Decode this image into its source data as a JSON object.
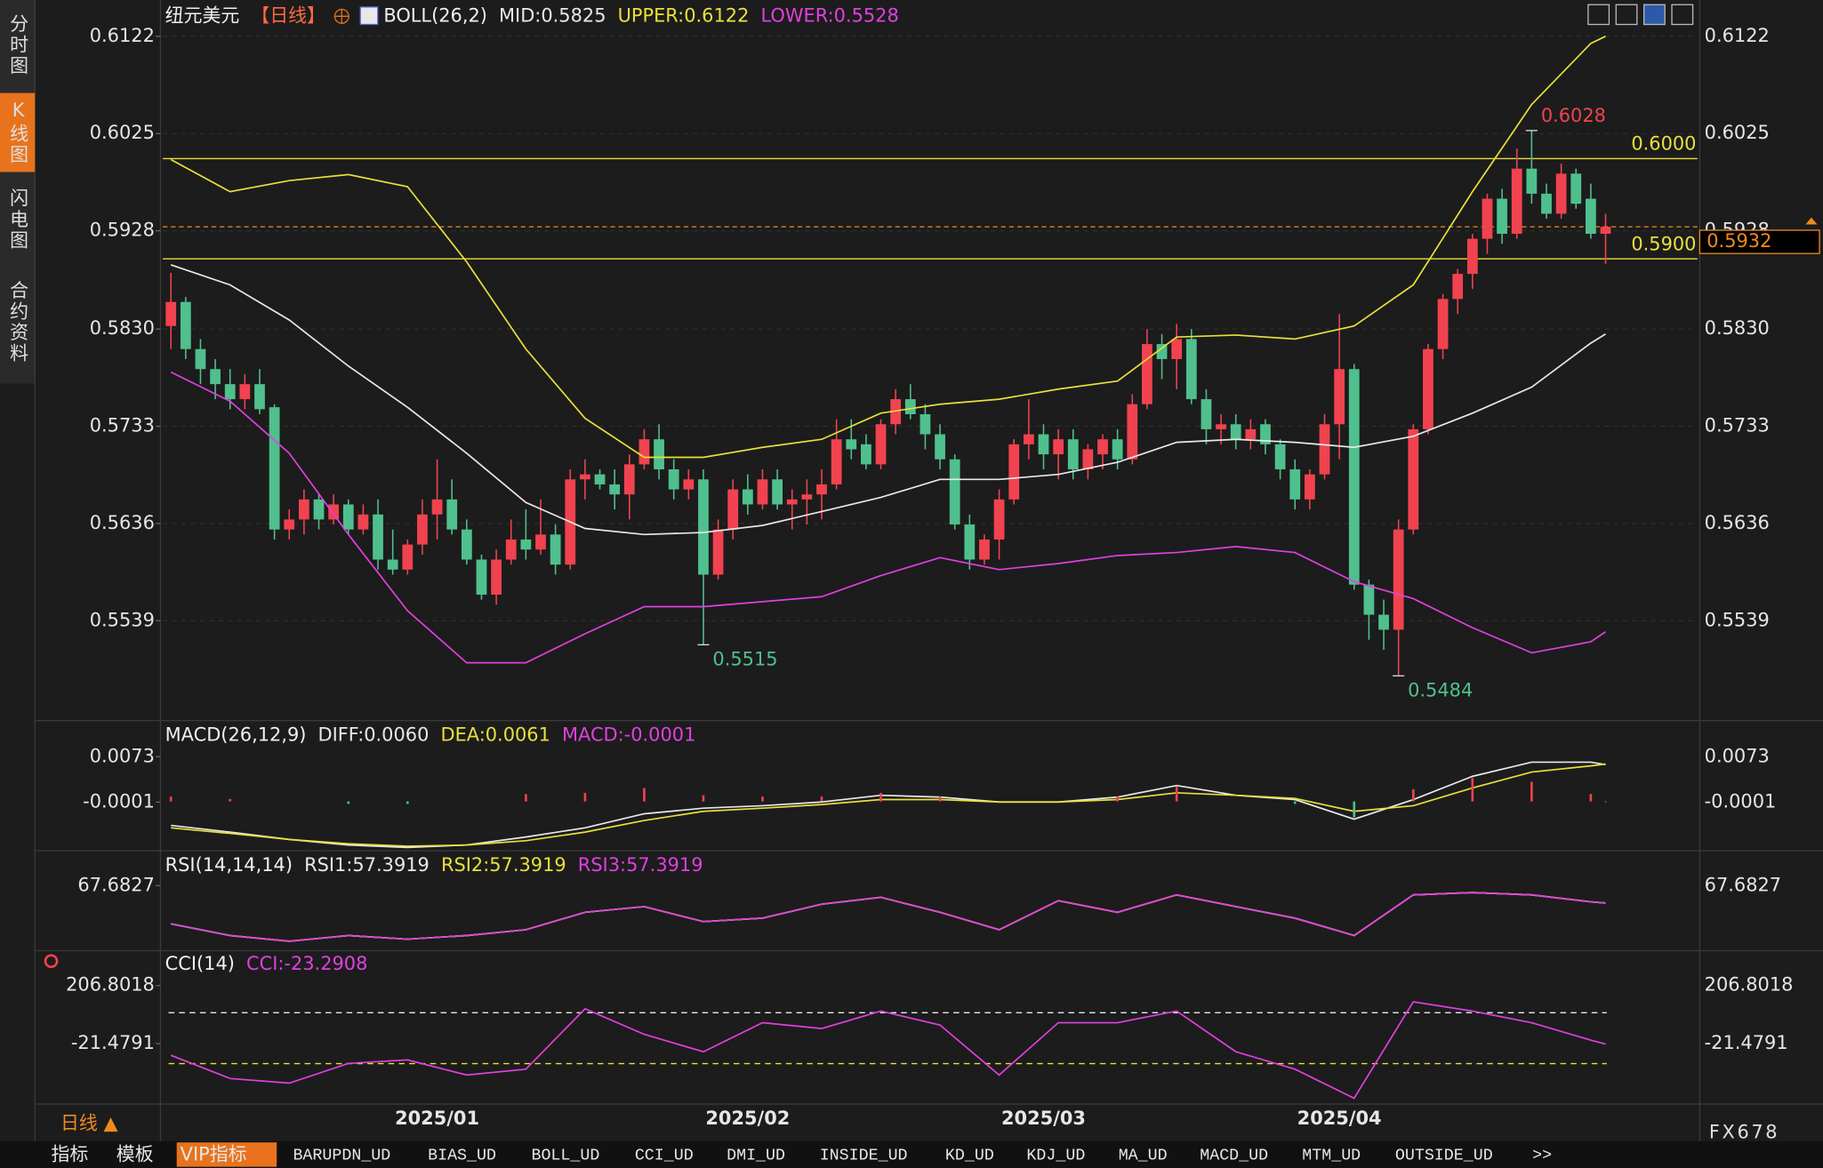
{
  "sidebar": {
    "tabs": [
      "分时图",
      "K线图",
      "闪电图",
      "合约资料"
    ]
  },
  "chart_data": [
    {
      "type": "candlestick",
      "title": "纽元美元",
      "period": "【日线】",
      "indicator": "BOLL(26,2)",
      "categories": [
        null,
        null,
        null,
        null,
        null,
        null,
        null,
        null,
        null,
        null,
        null,
        null,
        null,
        null,
        null,
        null,
        null,
        null,
        "2025/01",
        null,
        null,
        null,
        null,
        null,
        null,
        null,
        null,
        null,
        null,
        null,
        null,
        null,
        null,
        null,
        null,
        null,
        null,
        null,
        null,
        "2025/02",
        null,
        null,
        null,
        null,
        null,
        null,
        null,
        null,
        null,
        null,
        null,
        null,
        null,
        null,
        null,
        null,
        null,
        null,
        null,
        "2025/03",
        null,
        null,
        null,
        null,
        null,
        null,
        null,
        null,
        null,
        null,
        null,
        null,
        null,
        null,
        null,
        null,
        null,
        null,
        null,
        "2025/04",
        null,
        null,
        null,
        null,
        null,
        null,
        null,
        null,
        null,
        null,
        null,
        null,
        null,
        null,
        null,
        null,
        null,
        null
      ],
      "open": [
        0.5833,
        0.5857,
        0.581,
        0.579,
        0.5775,
        0.576,
        0.5775,
        0.5752,
        0.563,
        0.564,
        0.566,
        0.564,
        0.5655,
        0.563,
        0.5645,
        0.56,
        0.559,
        0.5615,
        0.5645,
        0.566,
        0.563,
        0.56,
        0.5565,
        0.56,
        0.562,
        0.561,
        0.5625,
        0.5595,
        0.568,
        0.5685,
        0.5675,
        0.5665,
        0.5695,
        0.572,
        0.569,
        0.567,
        0.568,
        0.5585,
        0.563,
        0.567,
        0.5655,
        0.568,
        0.5655,
        0.566,
        0.5665,
        0.5675,
        0.572,
        0.5715,
        0.5695,
        0.5735,
        0.576,
        0.5745,
        0.5725,
        0.57,
        0.5635,
        0.56,
        0.562,
        0.566,
        0.5715,
        0.5725,
        0.5705,
        0.572,
        0.569,
        0.5705,
        0.572,
        0.57,
        0.5755,
        0.5815,
        0.58,
        0.582,
        0.576,
        0.573,
        0.5735,
        0.572,
        0.5735,
        0.5715,
        0.569,
        0.566,
        0.5685,
        0.5735,
        0.579,
        0.5575,
        0.5545,
        0.553,
        0.563,
        0.573,
        0.581,
        0.586,
        0.5885,
        0.592,
        0.596,
        0.5925,
        0.599,
        0.5965,
        0.5945,
        0.5985,
        0.596,
        0.5925
      ],
      "high": [
        0.5886,
        0.5862,
        0.582,
        0.58,
        0.579,
        0.5785,
        0.579,
        0.5755,
        0.565,
        0.567,
        0.5665,
        0.5665,
        0.566,
        0.5655,
        0.566,
        0.563,
        0.562,
        0.566,
        0.57,
        0.568,
        0.564,
        0.5605,
        0.561,
        0.564,
        0.565,
        0.566,
        0.5635,
        0.569,
        0.57,
        0.569,
        0.569,
        0.5705,
        0.573,
        0.5735,
        0.57,
        0.569,
        0.569,
        0.564,
        0.568,
        0.5685,
        0.569,
        0.569,
        0.567,
        0.568,
        0.569,
        0.574,
        0.574,
        0.5725,
        0.574,
        0.577,
        0.5775,
        0.5755,
        0.5735,
        0.5705,
        0.5645,
        0.5625,
        0.567,
        0.572,
        0.576,
        0.5735,
        0.573,
        0.573,
        0.5715,
        0.5725,
        0.573,
        0.5765,
        0.583,
        0.5825,
        0.5835,
        0.583,
        0.577,
        0.5745,
        0.5745,
        0.574,
        0.574,
        0.572,
        0.57,
        0.569,
        0.5745,
        0.5845,
        0.5795,
        0.558,
        0.556,
        0.564,
        0.5735,
        0.5815,
        0.5865,
        0.589,
        0.5925,
        0.5965,
        0.597,
        0.601,
        0.6028,
        0.5975,
        0.5995,
        0.599,
        0.5975,
        0.5945
      ],
      "low": [
        0.581,
        0.58,
        0.5775,
        0.576,
        0.575,
        0.575,
        0.5745,
        0.562,
        0.562,
        0.5625,
        0.563,
        0.5635,
        0.5625,
        0.5625,
        0.559,
        0.5585,
        0.5585,
        0.5605,
        0.562,
        0.5625,
        0.5595,
        0.556,
        0.5555,
        0.5595,
        0.56,
        0.5605,
        0.5585,
        0.559,
        0.566,
        0.567,
        0.565,
        0.564,
        0.569,
        0.568,
        0.566,
        0.566,
        0.5515,
        0.558,
        0.562,
        0.5645,
        0.565,
        0.565,
        0.563,
        0.5635,
        0.564,
        0.567,
        0.57,
        0.569,
        0.569,
        0.5725,
        0.574,
        0.571,
        0.569,
        0.563,
        0.559,
        0.5595,
        0.56,
        0.5655,
        0.57,
        0.569,
        0.568,
        0.568,
        0.568,
        0.569,
        0.569,
        0.5695,
        0.575,
        0.578,
        0.577,
        0.5755,
        0.5715,
        0.5715,
        0.571,
        0.571,
        0.5705,
        0.568,
        0.565,
        0.565,
        0.568,
        0.57,
        0.557,
        0.552,
        0.551,
        0.5484,
        0.5625,
        0.5725,
        0.58,
        0.5845,
        0.587,
        0.5905,
        0.5915,
        0.592,
        0.5955,
        0.594,
        0.594,
        0.595,
        0.592,
        0.5895
      ],
      "close": [
        0.5857,
        0.581,
        0.579,
        0.5775,
        0.576,
        0.5775,
        0.575,
        0.563,
        0.564,
        0.566,
        0.564,
        0.5655,
        0.563,
        0.5645,
        0.56,
        0.559,
        0.5615,
        0.5645,
        0.566,
        0.563,
        0.56,
        0.5565,
        0.56,
        0.562,
        0.561,
        0.5625,
        0.5595,
        0.568,
        0.5685,
        0.5675,
        0.5665,
        0.5695,
        0.572,
        0.569,
        0.567,
        0.568,
        0.5585,
        0.563,
        0.567,
        0.5655,
        0.568,
        0.5655,
        0.566,
        0.5665,
        0.5675,
        0.572,
        0.571,
        0.5695,
        0.5735,
        0.576,
        0.5745,
        0.5725,
        0.57,
        0.5635,
        0.56,
        0.562,
        0.566,
        0.5715,
        0.5725,
        0.5705,
        0.572,
        0.569,
        0.571,
        0.572,
        0.57,
        0.5755,
        0.5815,
        0.58,
        0.582,
        0.576,
        0.573,
        0.5735,
        0.572,
        0.573,
        0.5715,
        0.569,
        0.566,
        0.5685,
        0.5735,
        0.579,
        0.5575,
        0.5545,
        0.553,
        0.563,
        0.573,
        0.581,
        0.586,
        0.5885,
        0.592,
        0.596,
        0.5925,
        0.599,
        0.5965,
        0.5945,
        0.5985,
        0.5955,
        0.5925,
        0.5932
      ],
      "up_color": "#f0434f",
      "down_color": "#4fc08d",
      "x": [
        0,
        4,
        8,
        12,
        16,
        20,
        24,
        28,
        32,
        36,
        40,
        44,
        48,
        52,
        56,
        60,
        64,
        68,
        72,
        76,
        80,
        84,
        88,
        92,
        96,
        97
      ],
      "series": [
        {
          "name": "MID:0.5825",
          "color": "#e8e8e8",
          "values": [
            0.5894,
            0.5874,
            0.5839,
            0.5793,
            0.5752,
            0.5706,
            0.5657,
            0.5631,
            0.5625,
            0.5627,
            0.5634,
            0.5648,
            0.5662,
            0.568,
            0.568,
            0.5685,
            0.5697,
            0.5717,
            0.572,
            0.5717,
            0.5712,
            0.5723,
            0.5746,
            0.5772,
            0.5816,
            0.5825
          ]
        },
        {
          "name": "UPPER:0.6122",
          "color": "#e8e03a",
          "values": [
            0.5999,
            0.5967,
            0.5978,
            0.5984,
            0.5972,
            0.5897,
            0.581,
            0.5741,
            0.5702,
            0.5702,
            0.5712,
            0.572,
            0.5746,
            0.5755,
            0.576,
            0.577,
            0.5778,
            0.5822,
            0.5824,
            0.582,
            0.5833,
            0.5874,
            0.5967,
            0.6054,
            0.6115,
            0.6122
          ]
        },
        {
          "name": "LOWER:0.5528",
          "color": "#e040e0",
          "values": [
            0.5787,
            0.5758,
            0.5706,
            0.5625,
            0.5549,
            0.5497,
            0.5497,
            0.5526,
            0.5553,
            0.5553,
            0.5558,
            0.5563,
            0.5584,
            0.5602,
            0.559,
            0.5596,
            0.5604,
            0.5607,
            0.5613,
            0.5607,
            0.5578,
            0.5561,
            0.5532,
            0.5507,
            0.5518,
            0.5528
          ]
        }
      ],
      "hlines": [
        {
          "value": 0.6,
          "label": "0.6000"
        },
        {
          "value": 0.59,
          "label": "0.5900"
        }
      ],
      "hline_color": "#e8e03a",
      "annotations": [
        {
          "x": 92,
          "value": 0.6028,
          "color": "#f0434f"
        },
        {
          "x": 36,
          "value": 0.5515,
          "color": "#4fc08d"
        },
        {
          "x": 83,
          "value": 0.5484,
          "color": "#4fc08d"
        }
      ],
      "last_price": 0.5932,
      "last_price_color": "#f08a1c",
      "ylim": [
        0.5451,
        0.6135
      ],
      "yticks": [
        0.6122,
        0.6025,
        0.5928,
        {
          "value": 0.583,
          "label": "0.5830"
        },
        0.5733,
        0.5636,
        0.5539
      ],
      "grid": true
    },
    {
      "type": "line",
      "indicator": "MACD(26,12,9)",
      "x": [
        0,
        4,
        8,
        12,
        16,
        20,
        24,
        28,
        32,
        36,
        40,
        44,
        48,
        52,
        56,
        60,
        64,
        68,
        72,
        76,
        80,
        84,
        88,
        92,
        96,
        97
      ],
      "up_color": "#f0434f",
      "down_color": "#4fc08d",
      "series": [
        {
          "name": "DIFF:0.0060",
          "color": "#e8e8e8",
          "values": [
            -0.0039,
            -0.005,
            -0.0062,
            -0.0071,
            -0.0075,
            -0.0071,
            -0.0058,
            -0.0043,
            -0.002,
            -0.0011,
            -0.0007,
            -0.0001,
            0.001,
            0.0007,
            -0.0001,
            -0.0001,
            0.0007,
            0.0026,
            0.001,
            0.0003,
            -0.0029,
            0.0003,
            0.0041,
            0.0064,
            0.0064,
            0.006
          ]
        },
        {
          "name": "DEA:0.0061",
          "color": "#e8e03a",
          "values": [
            -0.0043,
            -0.0052,
            -0.0062,
            -0.0069,
            -0.0073,
            -0.0071,
            -0.0064,
            -0.005,
            -0.0031,
            -0.0016,
            -0.0011,
            -0.0005,
            0.0003,
            0.0003,
            -0.0001,
            -0.0001,
            0.0003,
            0.0014,
            0.001,
            0.0005,
            -0.0016,
            -0.0007,
            0.0022,
            0.0048,
            0.0058,
            0.0061
          ]
        },
        {
          "name": "MACD:-0.0001",
          "color": "#e040e0",
          "type": "bar",
          "values": [
            0.0008,
            0.0004,
            0.0,
            -0.0004,
            -0.0004,
            0.0,
            0.0012,
            0.0014,
            0.0022,
            0.001,
            0.0008,
            0.0008,
            0.0014,
            0.0008,
            0.0,
            0.0,
            0.0008,
            0.0024,
            0.0,
            -0.0004,
            -0.0026,
            0.002,
            0.0038,
            0.0032,
            0.0012,
            -0.0001
          ]
        }
      ],
      "ylim": [
        -0.0086,
        0.0094
      ],
      "yticks": [
        0.0073,
        -0.0001
      ]
    },
    {
      "type": "line",
      "indicator": "RSI(14,14,14)",
      "x": [
        0,
        4,
        8,
        12,
        16,
        20,
        24,
        28,
        32,
        36,
        40,
        44,
        48,
        52,
        56,
        60,
        64,
        68,
        72,
        76,
        80,
        84,
        88,
        92,
        96,
        97
      ],
      "series": [
        {
          "name": "RSI1:57.3919",
          "color": "#e8e8e8",
          "values": [
            45.1,
            38.2,
            34.8,
            38.2,
            36.1,
            38.2,
            41.6,
            51.9,
            55.3,
            46.4,
            48.5,
            56.7,
            60.8,
            51.9,
            41.6,
            58.8,
            51.9,
            62.2,
            55.3,
            48.5,
            38.2,
            62.2,
            63.6,
            62.2,
            58.1,
            57.3919
          ]
        },
        {
          "name": "RSI2:57.3919",
          "color": "#e8e03a",
          "values": [
            45.1,
            38.2,
            34.8,
            38.2,
            36.1,
            38.2,
            41.6,
            51.9,
            55.3,
            46.4,
            48.5,
            56.7,
            60.8,
            51.9,
            41.6,
            58.8,
            51.9,
            62.2,
            55.3,
            48.5,
            38.2,
            62.2,
            63.6,
            62.2,
            58.1,
            57.3919
          ]
        },
        {
          "name": "RSI3:57.3919",
          "color": "#e040e0",
          "values": [
            45.1,
            38.2,
            34.8,
            38.2,
            36.1,
            38.2,
            41.6,
            51.9,
            55.3,
            46.4,
            48.5,
            56.7,
            60.8,
            51.9,
            41.6,
            58.8,
            51.9,
            62.2,
            55.3,
            48.5,
            38.2,
            62.2,
            63.6,
            62.2,
            58.1,
            57.3919
          ]
        }
      ],
      "ylim": [
        27.9,
        82.8
      ],
      "yticks": [
        67.6827
      ]
    },
    {
      "type": "line",
      "indicator": "CCI(14)",
      "x": [
        0,
        4,
        8,
        12,
        16,
        20,
        24,
        28,
        32,
        36,
        40,
        44,
        48,
        52,
        56,
        60,
        64,
        68,
        72,
        76,
        80,
        84,
        88,
        92,
        96,
        97
      ],
      "series": [
        {
          "name": "CCI:-23.2908",
          "color": "#e040e0",
          "values": [
            -67.1,
            -158.5,
            -176.7,
            -99.1,
            -85.4,
            -144.8,
            -121.9,
            115.5,
            15.0,
            -53.4,
            60.7,
            37.9,
            106.4,
            51.6,
            -144.8,
            60.7,
            60.7,
            106.4,
            -53.4,
            -121.9,
            -236.1,
            142.9,
            106.4,
            60.7,
            -7.8,
            -23.2908
          ]
        }
      ],
      "reference_lines": [
        100,
        -100
      ],
      "reference_colors": [
        "#e8e8e8",
        "#e8e03a"
      ],
      "ylim": [
        -281.7,
        252.5
      ],
      "yticks": [
        206.8018,
        -21.4791
      ]
    }
  ],
  "period_button": "日线 ▲",
  "toolbar": {
    "tabs": [
      "指标",
      "模板",
      "VIP指标",
      "BARUPDN_UD",
      "BIAS_UD",
      "BOLL_UD",
      "CCI_UD",
      "DMI_UD",
      "INSIDE_UD",
      "KD_UD",
      "KDJ_UD",
      "MA_UD",
      "MACD_UD",
      "MTM_UD",
      "OUTSIDE_UD",
      ">>"
    ]
  },
  "watermark": "FX678"
}
